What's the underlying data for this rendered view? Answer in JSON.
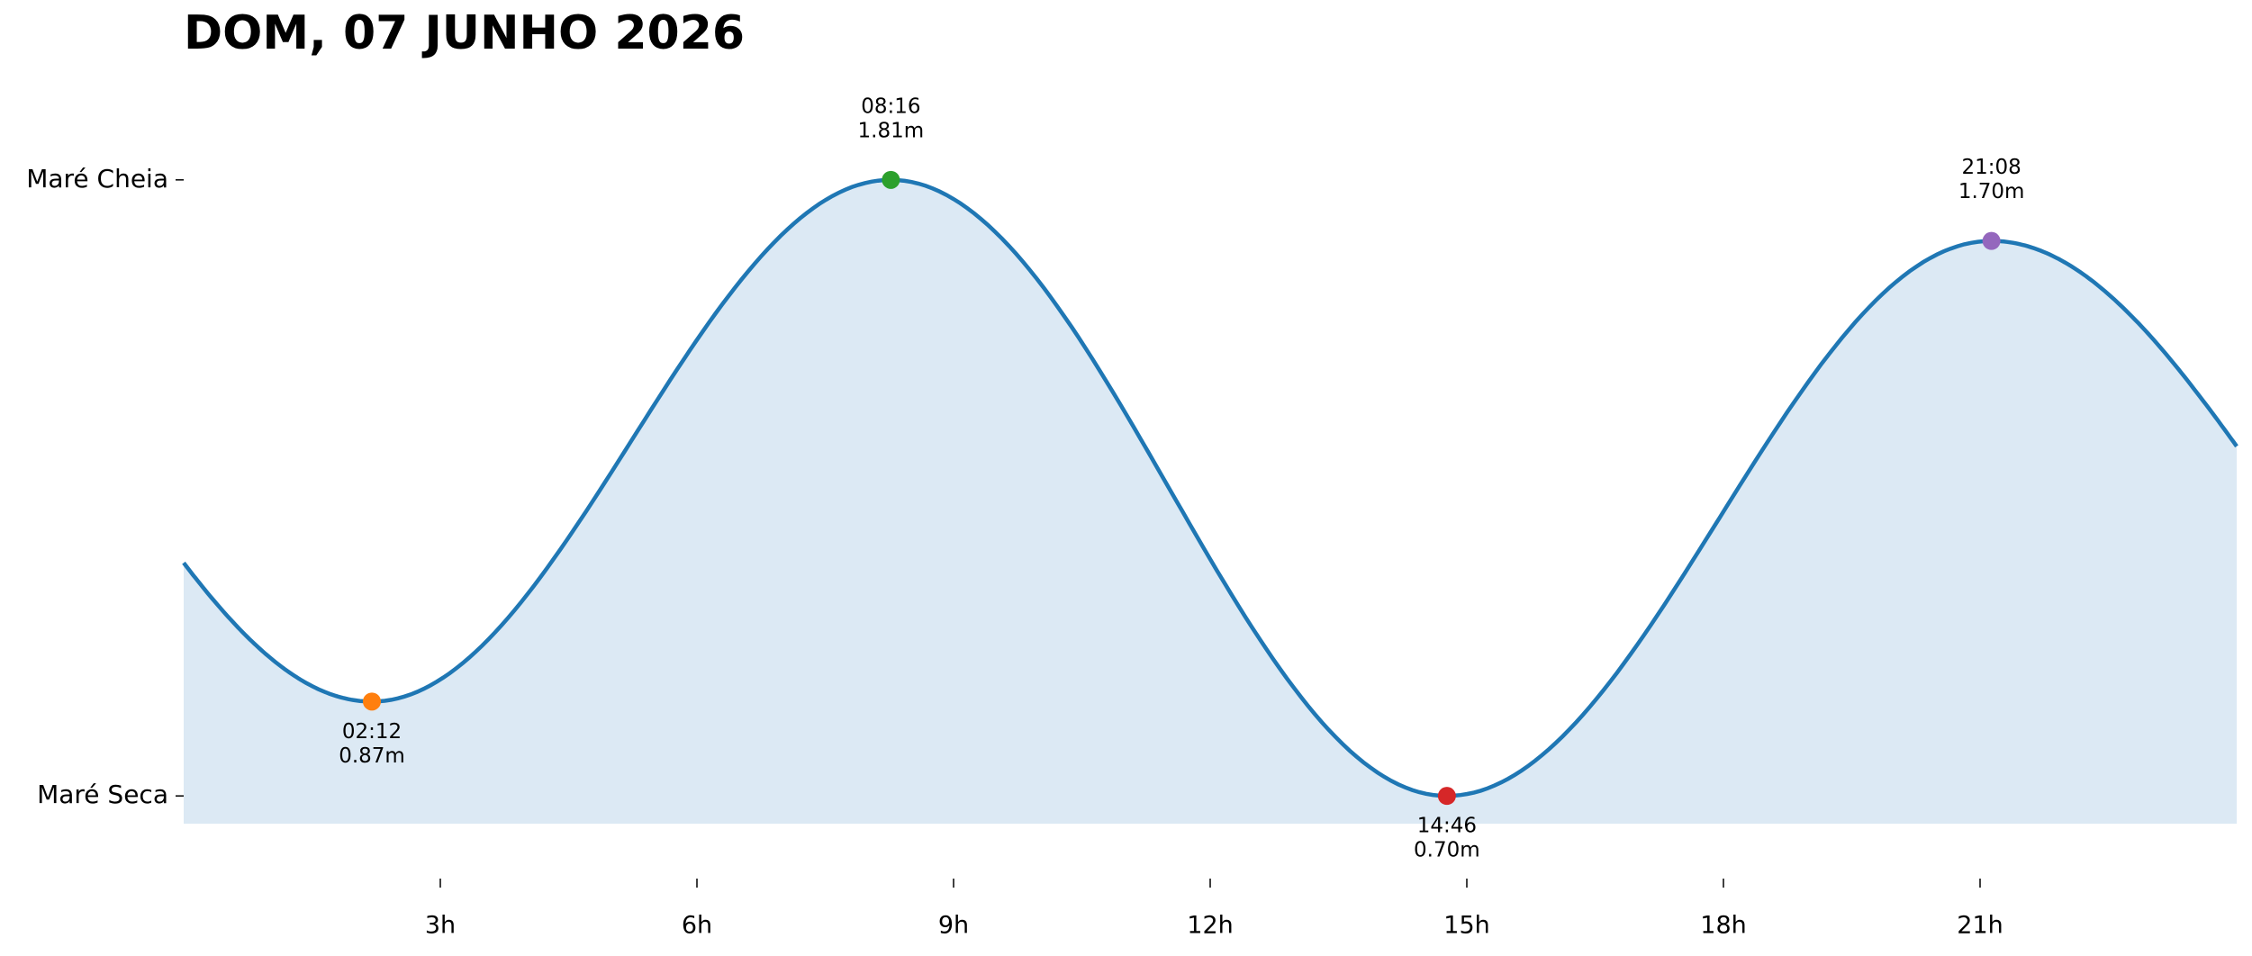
{
  "chart_data": {
    "type": "line",
    "title": "DOM, 07 JUNHO 2026",
    "line_color": "#1f77b4",
    "fill_color": "#dce9f4",
    "x": [
      0,
      2.2,
      8.267,
      14.767,
      21.133,
      24
    ],
    "values": [
      1.12,
      0.87,
      1.81,
      0.7,
      1.7,
      1.33
    ],
    "points": {
      "x": [
        2.2,
        8.267,
        14.767,
        21.133
      ],
      "x_labels": [
        "02:12",
        "08:16",
        "14:46",
        "21:08"
      ],
      "values": [
        0.87,
        1.81,
        0.7,
        1.7
      ],
      "value_labels": [
        "0.87m",
        "1.81m",
        "0.70m",
        "1.70m"
      ],
      "colors": [
        "#ff7f0e",
        "#2ca02c",
        "#d62728",
        "#9467bd"
      ]
    },
    "xlim": [
      0,
      24
    ],
    "xticks": [
      {
        "value": 3,
        "label": "3h"
      },
      {
        "value": 6,
        "label": "6h"
      },
      {
        "value": 9,
        "label": "9h"
      },
      {
        "value": 12,
        "label": "12h"
      },
      {
        "value": 15,
        "label": "15h"
      },
      {
        "value": 18,
        "label": "18h"
      },
      {
        "value": 21,
        "label": "21h"
      }
    ],
    "ylim": [
      0.65,
      1.86
    ],
    "yticks": [
      {
        "value": 0.7,
        "label": "Maré Seca"
      },
      {
        "value": 1.81,
        "label": "Maré Cheia"
      }
    ]
  }
}
